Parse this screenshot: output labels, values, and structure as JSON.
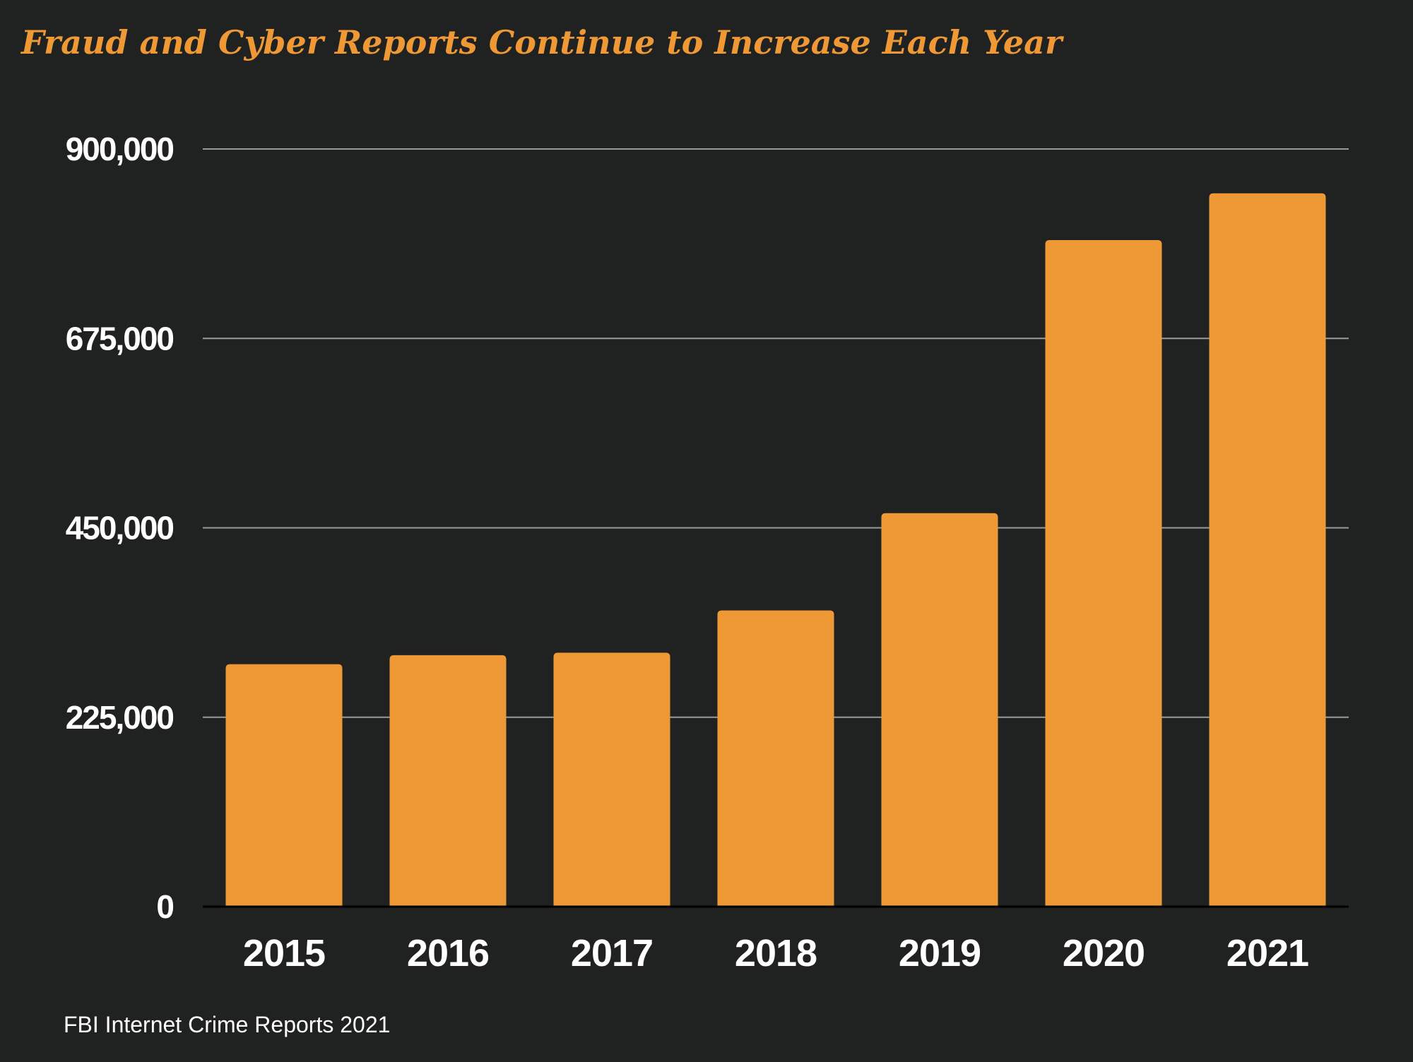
{
  "chart_data": {
    "type": "bar",
    "title": "Fraud and Cyber Reports Continue to Increase Each Year",
    "source": "FBI Internet Crime Reports 2021",
    "categories": [
      "2015",
      "2016",
      "2017",
      "2018",
      "2019",
      "2020",
      "2021"
    ],
    "values": [
      288000,
      298700,
      301600,
      351900,
      467400,
      791800,
      847400
    ],
    "ylim": [
      0,
      900000
    ],
    "yticks": [
      0,
      225000,
      450000,
      675000,
      900000
    ],
    "ytick_labels": [
      "0",
      "225,000",
      "450,000",
      "675,000",
      "900,000"
    ],
    "xlabel": "",
    "ylabel": "",
    "grid": true,
    "legend": "none"
  },
  "colors": {
    "background": "#202121",
    "bar": "#EE9936",
    "title": "#EE9936",
    "text": "#FFFFFF",
    "gridline": "#9A9A9A",
    "baseline": "#000000"
  }
}
